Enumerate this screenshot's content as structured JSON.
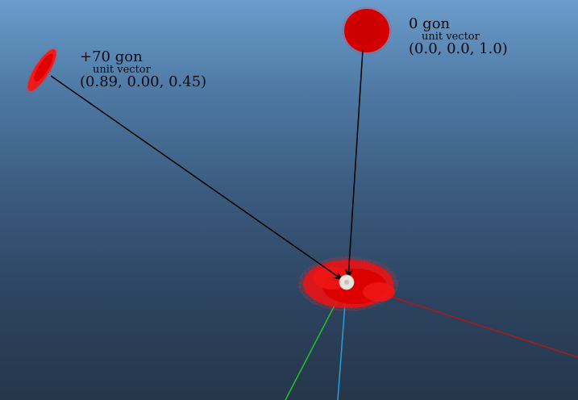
{
  "labels": {
    "plus70": {
      "title": "+70 gon",
      "subtitle": "unit vector",
      "vector": "(0.89, 0.00, 0.45)"
    },
    "zero": {
      "title": "0 gon",
      "subtitle": "unit vector",
      "vector": "(0.0, 0.0, 1.0)"
    }
  },
  "colors": {
    "cloud": "#e60000",
    "cloud_dense": "#cc0000",
    "arrow": "#000000",
    "axis_x": "#b01818",
    "axis_y": "#22c322",
    "axis_z": "#2a9fd8",
    "origin_marker": "#e8e4dc"
  }
}
